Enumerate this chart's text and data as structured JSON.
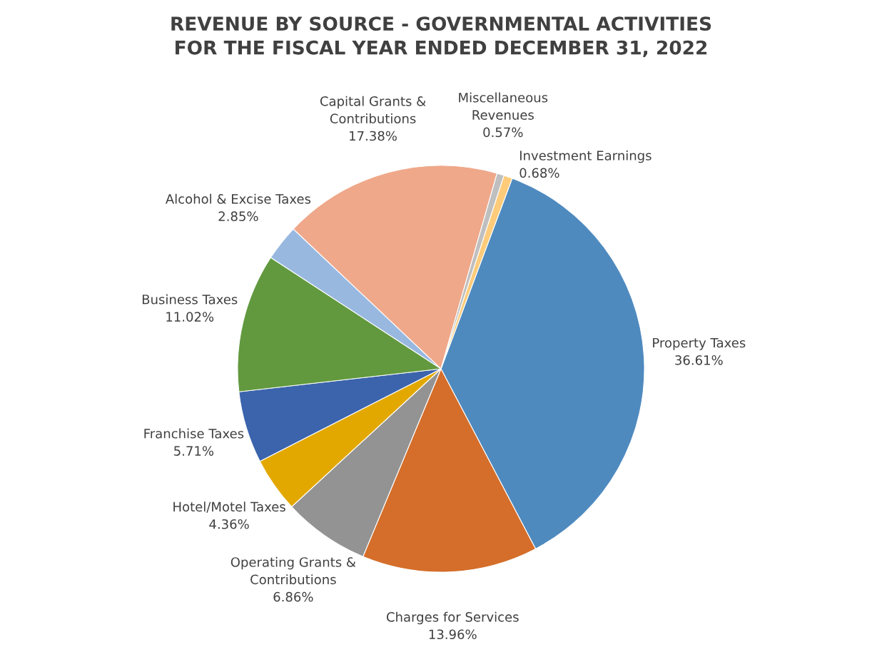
{
  "chart_data": {
    "type": "pie",
    "title": "REVENUE BY SOURCE - GOVERNMENTAL ACTIVITIES\nFOR THE FISCAL YEAR ENDED DECEMBER 31, 2022",
    "categories": [
      "Property Taxes",
      "Charges for Services",
      "Operating Grants &\nContributions",
      "Hotel/Motel Taxes",
      "Franchise Taxes",
      "Business Taxes",
      "Alcohol & Excise Taxes",
      "Capital Grants &\nContributions",
      "Miscellaneous\nRevenues",
      "Investment Earnings"
    ],
    "values": [
      36.61,
      13.96,
      6.86,
      4.36,
      5.71,
      11.02,
      2.85,
      17.38,
      0.57,
      0.68
    ],
    "value_labels": [
      "36.61%",
      "13.96%",
      "6.86%",
      "4.36%",
      "5.71%",
      "11.02%",
      "2.85%",
      "17.38%",
      "0.57%",
      "0.68%"
    ],
    "colors": [
      "#4f8abf",
      "#d46e2a",
      "#939393",
      "#e2a800",
      "#3c64ad",
      "#62993e",
      "#98b8e0",
      "#efa88a",
      "#bfbfbf",
      "#fdcb7a"
    ],
    "legend": false
  }
}
